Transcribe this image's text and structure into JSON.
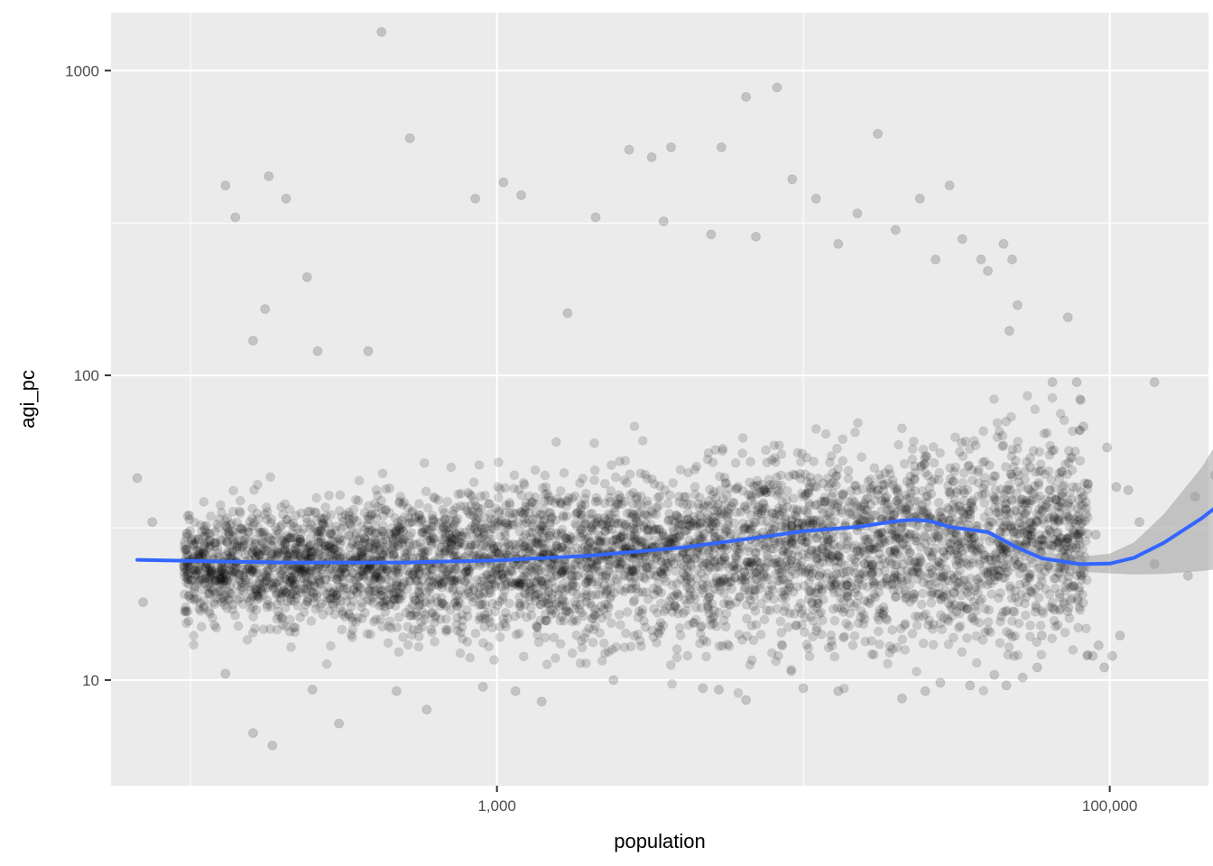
{
  "chart_data": {
    "type": "scatter",
    "title": "",
    "xlabel": "population",
    "ylabel": "agi_pc",
    "x_scale": "log10",
    "y_scale": "log10",
    "xlim": [
      55,
      210000
    ],
    "ylim": [
      4.5,
      1550
    ],
    "x_ticks": [
      {
        "value": 1000,
        "label": "1,000"
      },
      {
        "value": 100000,
        "label": "100,000"
      }
    ],
    "x_minor_ticks": [
      100,
      10000
    ],
    "y_ticks": [
      {
        "value": 10,
        "label": "10"
      },
      {
        "value": 100,
        "label": "100"
      },
      {
        "value": 1000,
        "label": "1000"
      }
    ],
    "y_minor_ticks": [
      31.6,
      316
    ],
    "grid": true,
    "legend": "none",
    "colors": {
      "panel_background": "#ebebeb",
      "grid_line": "#ffffff",
      "point": "#000000",
      "smooth_line": "#3366ff",
      "confidence_band": "#999999"
    },
    "point_alpha": 0.15,
    "series": [
      {
        "type": "scatter",
        "points": [
          [
            67,
            46
          ],
          [
            70,
            18
          ],
          [
            75,
            33
          ],
          [
            180,
            450
          ],
          [
            130,
            420
          ],
          [
            140,
            330
          ],
          [
            205,
            380
          ],
          [
            240,
            210
          ],
          [
            160,
            130
          ],
          [
            175,
            165
          ],
          [
            260,
            120
          ],
          [
            420,
            1340
          ],
          [
            380,
            120
          ],
          [
            520,
            600
          ],
          [
            850,
            380
          ],
          [
            1050,
            430
          ],
          [
            1200,
            390
          ],
          [
            1700,
            160
          ],
          [
            2100,
            330
          ],
          [
            2700,
            550
          ],
          [
            3200,
            520
          ],
          [
            3700,
            560
          ],
          [
            5400,
            560
          ],
          [
            6500,
            820
          ],
          [
            8200,
            880
          ],
          [
            9200,
            440
          ],
          [
            17500,
            620
          ],
          [
            24000,
            380
          ],
          [
            30000,
            420
          ],
          [
            11000,
            380
          ],
          [
            15000,
            340
          ],
          [
            3500,
            320
          ],
          [
            5000,
            290
          ],
          [
            7000,
            285
          ],
          [
            13000,
            270
          ],
          [
            20000,
            300
          ],
          [
            27000,
            240
          ],
          [
            40000,
            220
          ],
          [
            33000,
            280
          ],
          [
            38000,
            240
          ],
          [
            45000,
            270
          ],
          [
            48000,
            240
          ],
          [
            50000,
            170
          ],
          [
            47000,
            140
          ],
          [
            65000,
            95
          ],
          [
            73000,
            155
          ],
          [
            140000,
            95
          ],
          [
            220000,
            47
          ],
          [
            190000,
            40
          ],
          [
            180000,
            22
          ],
          [
            140000,
            24
          ],
          [
            125000,
            33
          ],
          [
            115000,
            42
          ],
          [
            105000,
            43
          ],
          [
            98000,
            58
          ],
          [
            102000,
            12
          ],
          [
            108000,
            14
          ],
          [
            96000,
            11
          ],
          [
            82000,
            68
          ],
          [
            85000,
            44
          ],
          [
            90000,
            30
          ],
          [
            88000,
            12
          ],
          [
            92000,
            13
          ],
          [
            78000,
            95
          ],
          [
            70000,
            40
          ],
          [
            62000,
            30
          ],
          [
            55000,
            50
          ],
          [
            60000,
            14
          ],
          [
            66000,
            17
          ],
          [
            58000,
            11
          ],
          [
            130,
            10.5
          ],
          [
            160,
            6.7
          ],
          [
            185,
            6.1
          ],
          [
            305,
            7.2
          ],
          [
            590,
            8
          ],
          [
            250,
            9.3
          ],
          [
            470,
            9.2
          ],
          [
            900,
            9.5
          ],
          [
            1150,
            9.2
          ],
          [
            1400,
            8.5
          ],
          [
            2400,
            10
          ],
          [
            4700,
            9.4
          ],
          [
            5300,
            9.3
          ],
          [
            6500,
            8.6
          ],
          [
            10000,
            9.4
          ],
          [
            13000,
            9.2
          ],
          [
            21000,
            8.7
          ],
          [
            25000,
            9.2
          ],
          [
            28000,
            9.8
          ],
          [
            35000,
            9.6
          ],
          [
            42000,
            10.4
          ],
          [
            46000,
            9.6
          ],
          [
            52000,
            10.2
          ],
          [
            300,
            25
          ],
          [
            1000,
            26
          ],
          [
            5000,
            28
          ],
          [
            20000,
            30
          ],
          [
            40000,
            32
          ],
          [
            60000,
            29
          ],
          [
            200,
            23
          ],
          [
            1500,
            24
          ],
          [
            8000,
            27
          ],
          [
            15000,
            31
          ],
          [
            300,
            19
          ],
          [
            600,
            21
          ],
          [
            2000,
            22
          ],
          [
            4000,
            24
          ],
          [
            12000,
            26
          ],
          [
            25000,
            28
          ],
          [
            35000,
            35
          ],
          [
            50000,
            27
          ]
        ]
      }
    ],
    "density_cloud": {
      "x_range": [
        95,
        85000
      ],
      "y_center": 24,
      "note": "very dense overplotted point cloud"
    },
    "smooth": {
      "name": "",
      "x": [
        67,
        100,
        200,
        500,
        1000,
        2000,
        4000,
        7000,
        10000,
        15000,
        20000,
        23000,
        26000,
        30000,
        40000,
        50000,
        60000,
        80000,
        100000,
        120000,
        150000,
        200000,
        230000
      ],
      "y": [
        24.8,
        24.6,
        24.3,
        24.3,
        24.7,
        25.6,
        27.2,
        29.3,
        30.8,
        31.8,
        33.2,
        33.6,
        33.2,
        31.8,
        30.6,
        27.2,
        25.1,
        24.0,
        24.1,
        25.2,
        28.2,
        34.0,
        38.0
      ],
      "ci_lower": [
        24.5,
        24.4,
        24.1,
        24.1,
        24.5,
        25.4,
        27.0,
        29.1,
        30.6,
        31.5,
        32.9,
        33.2,
        32.8,
        31.4,
        30.0,
        26.4,
        24.0,
        22.7,
        22.4,
        22.2,
        22.3,
        22.8,
        23.2
      ],
      "ci_upper": [
        25.1,
        24.8,
        24.5,
        24.5,
        24.9,
        25.8,
        27.4,
        29.5,
        31.0,
        32.1,
        33.5,
        34.0,
        33.6,
        32.2,
        31.2,
        28.0,
        26.3,
        25.4,
        26.0,
        28.3,
        35.0,
        50.0,
        63.0
      ]
    }
  }
}
